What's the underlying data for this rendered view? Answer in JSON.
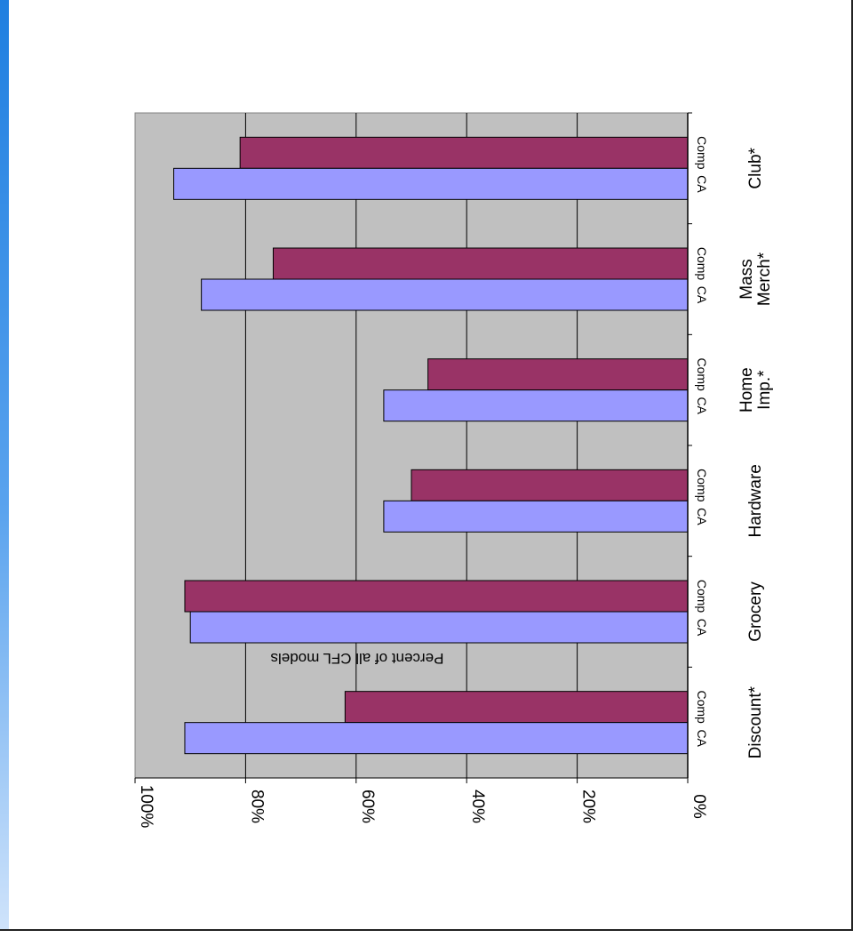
{
  "chart_data": {
    "type": "bar",
    "orientation": "horizontal",
    "categories": [
      "Discount*",
      "Grocery",
      "Hardware",
      "Home Imp.*",
      "Mass Merch*",
      "Club*"
    ],
    "series": [
      {
        "name": "CA",
        "color": "#9999ff",
        "values": [
          91,
          90,
          55,
          55,
          88,
          93
        ]
      },
      {
        "name": "Comp",
        "color": "#993366",
        "values": [
          62,
          91,
          50,
          47,
          75,
          81
        ]
      }
    ],
    "xlabel": "",
    "ylabel": "Percent of all CFL models",
    "ylim": [
      0,
      100
    ],
    "ticks": [
      "0%",
      "20%",
      "40%",
      "60%",
      "80%",
      "100%"
    ],
    "grid": true,
    "plot_background": "#c0c0c0"
  }
}
